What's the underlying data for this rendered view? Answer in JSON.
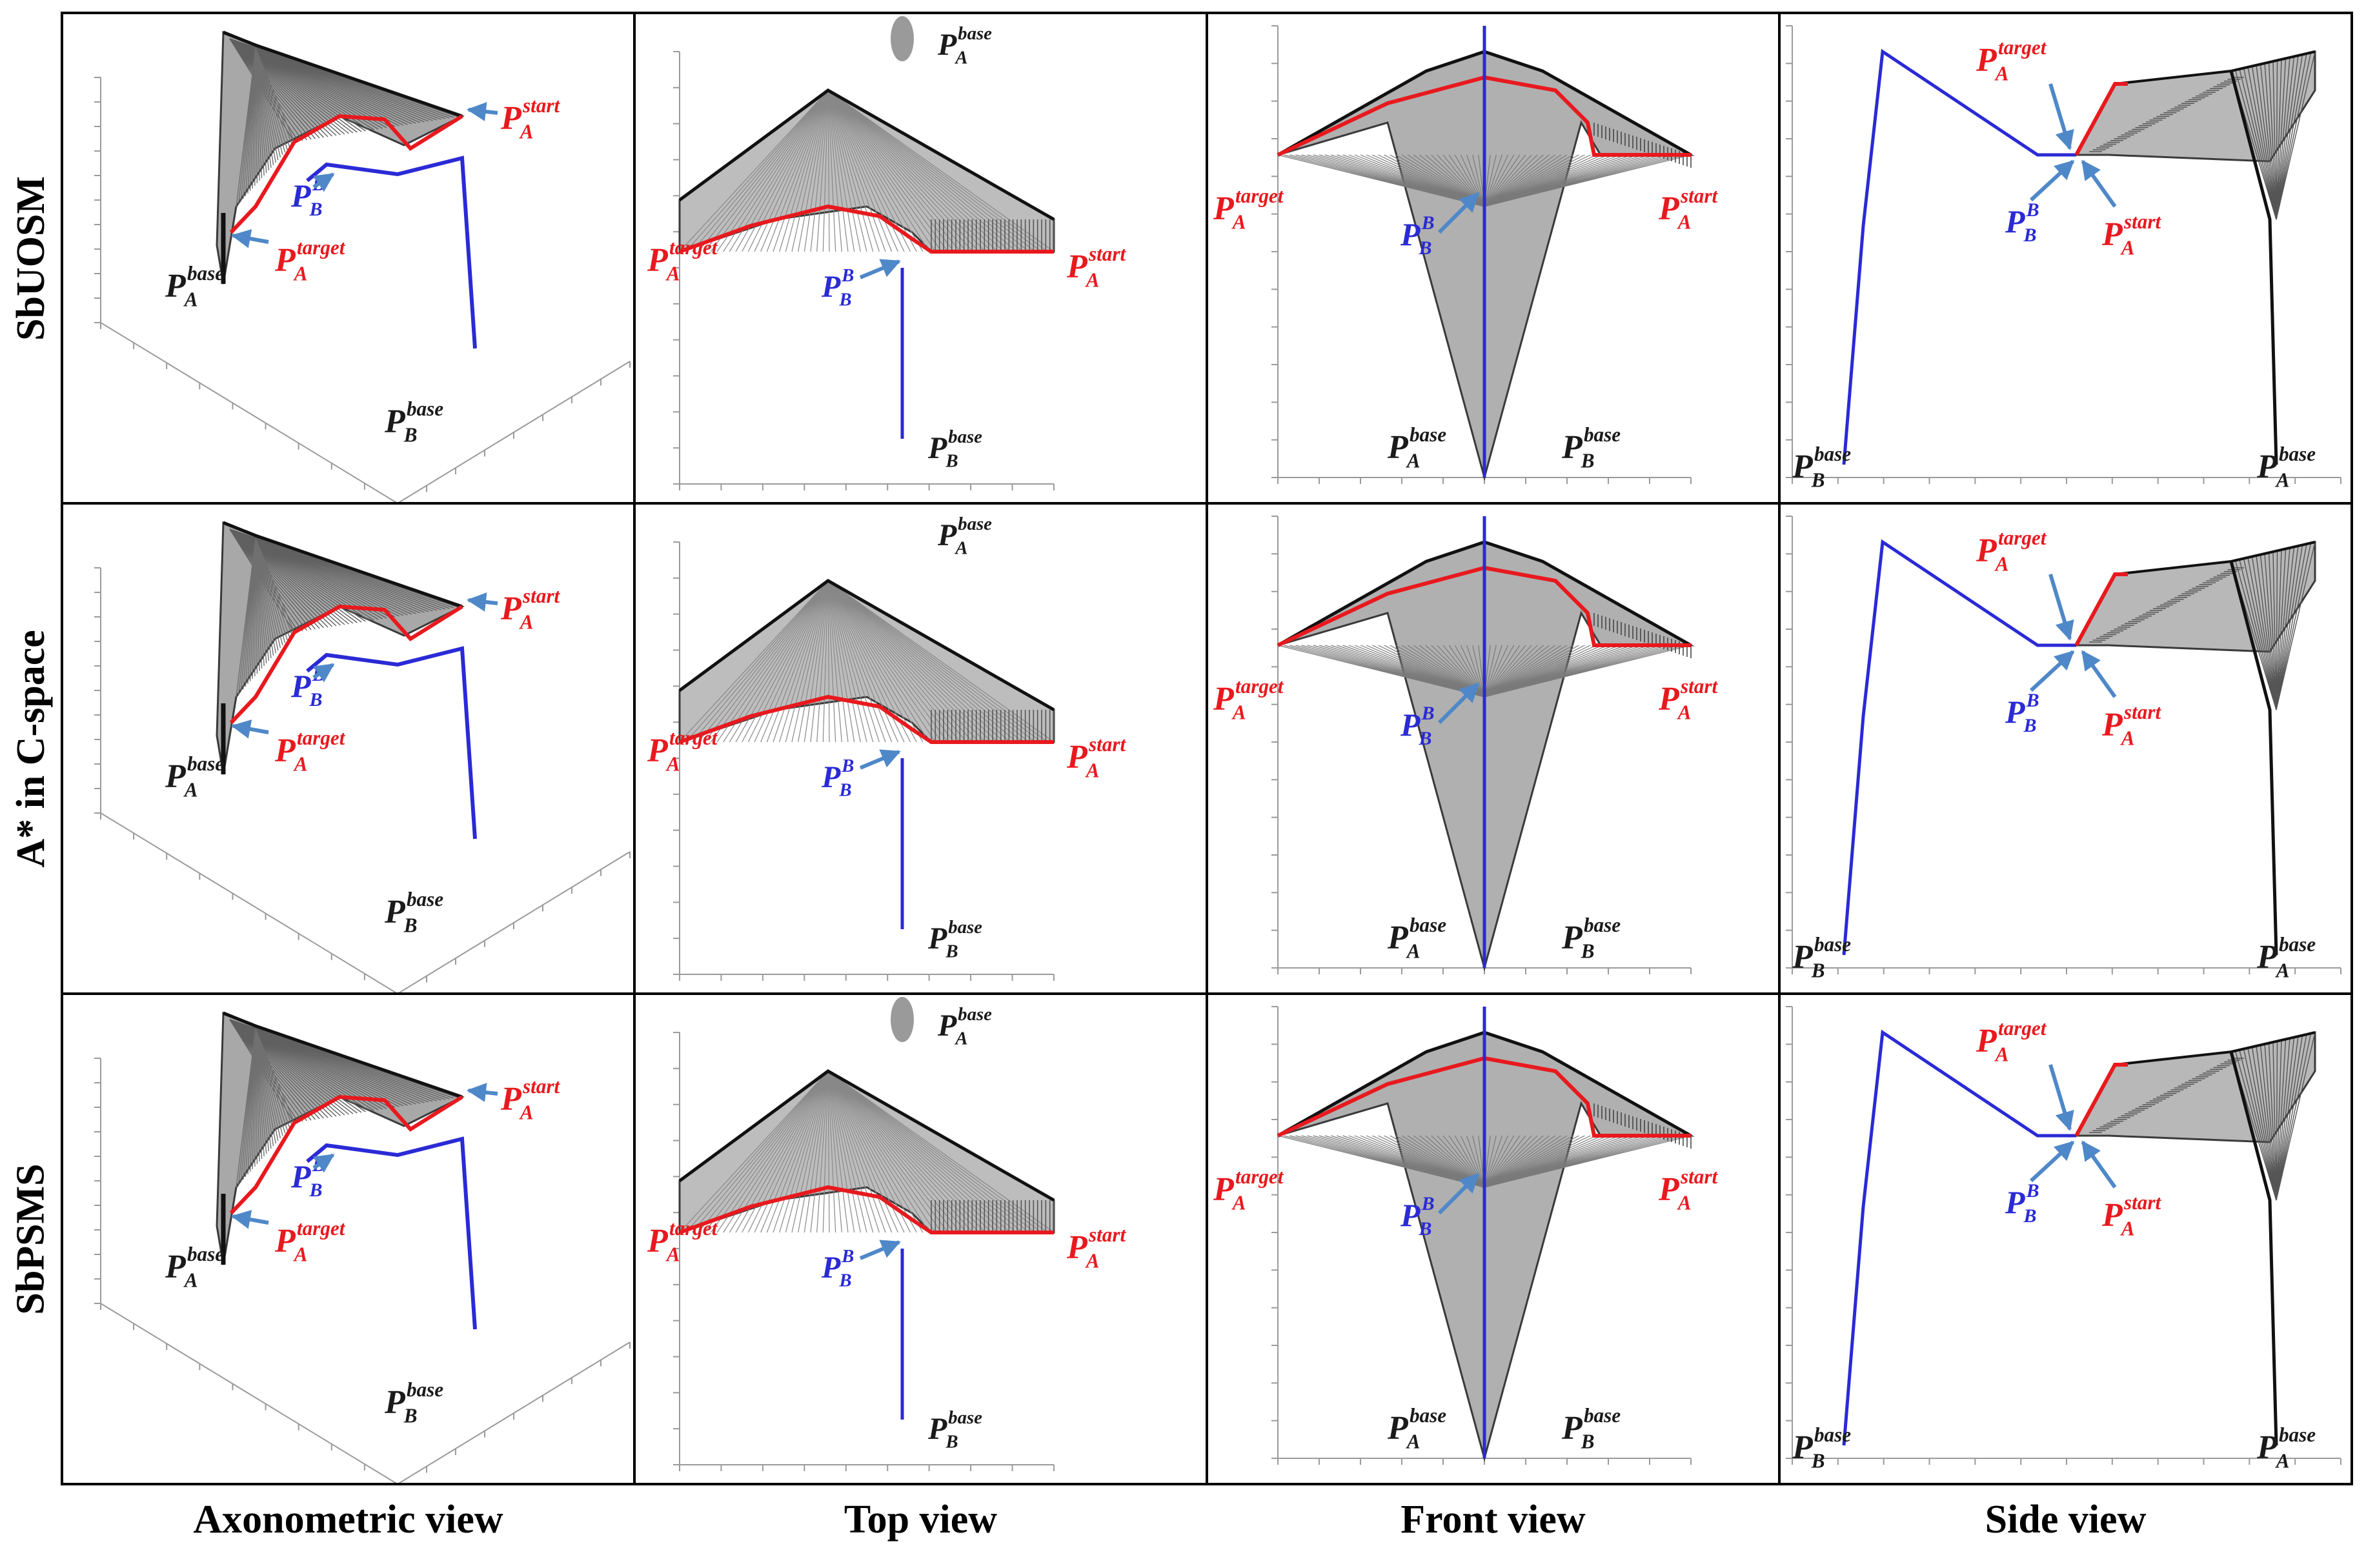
{
  "figure": {
    "rows": [
      {
        "label": "SbUOSM"
      },
      {
        "label": "A* in C-space"
      },
      {
        "label": "SbPSMS"
      }
    ],
    "columns": [
      {
        "label": "Axonometric view"
      },
      {
        "label": "Top view"
      },
      {
        "label": "Front view"
      },
      {
        "label": "Side view"
      }
    ],
    "point_labels": {
      "main": "P",
      "sub_A": "A",
      "sub_B": "B",
      "sup_base": "base",
      "sup_start": "start",
      "sup_target": "target"
    },
    "colors": {
      "target_path": "#e8191e",
      "robot_b_path": "#2a2ad6",
      "arrow": "#4f88c8",
      "base_label": "#1a1a1a",
      "sweep_dark": "#3a3a3a",
      "sweep_light": "#c8c8c8",
      "border": "#000000"
    }
  }
}
